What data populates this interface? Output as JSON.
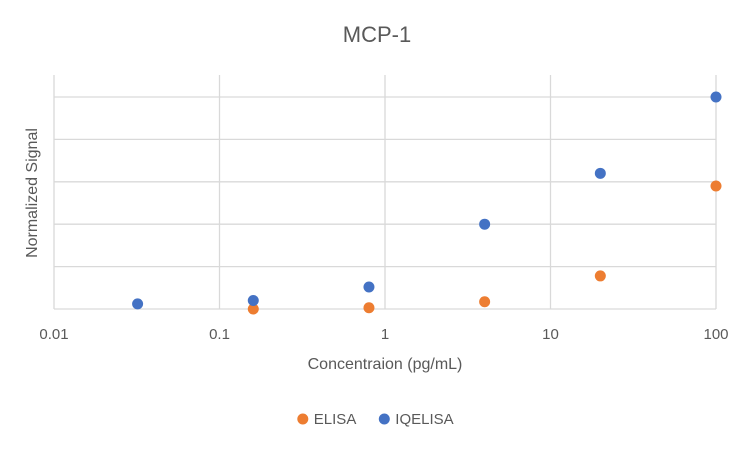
{
  "chart_data": {
    "type": "scatter",
    "title": "MCP-1",
    "xlabel": "Concentraion (pg/mL)",
    "ylabel": "Normalized Signal",
    "x_scale": "log",
    "xlim": [
      0.01,
      100
    ],
    "x_ticks": [
      "0.01",
      "0.1",
      "1",
      "10",
      "100"
    ],
    "ylim": [
      0,
      5
    ],
    "grid": true,
    "legend_position": "bottom",
    "series": [
      {
        "name": "ELISA",
        "color": "#ED7D31",
        "points": [
          {
            "x": 0.16,
            "y": 0.0
          },
          {
            "x": 0.8,
            "y": 0.03
          },
          {
            "x": 4,
            "y": 0.17
          },
          {
            "x": 20,
            "y": 0.78
          },
          {
            "x": 100,
            "y": 2.9
          }
        ]
      },
      {
        "name": "IQELISA",
        "color": "#4472C4",
        "points": [
          {
            "x": 0.032,
            "y": 0.12
          },
          {
            "x": 0.16,
            "y": 0.2
          },
          {
            "x": 0.8,
            "y": 0.52
          },
          {
            "x": 4,
            "y": 2.0
          },
          {
            "x": 20,
            "y": 3.2
          },
          {
            "x": 100,
            "y": 5.0
          }
        ]
      }
    ]
  }
}
